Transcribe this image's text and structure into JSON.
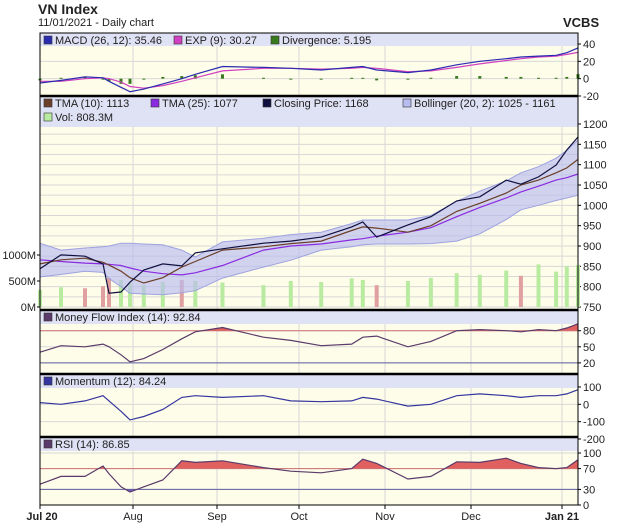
{
  "header": {
    "title": "VN Index",
    "subtitle": "11/01/2021 - Daily chart",
    "brand": "VCBS"
  },
  "colors": {
    "plot_bg": "#fefde9",
    "legend_bg": "#dfe1f4",
    "grid": "#d8d8d8",
    "macd": "#2b2bb0",
    "exp": "#d040c0",
    "divergence": "#3a7a1e",
    "tma10": "#6b3f2a",
    "tma25": "#8a2be2",
    "close": "#101040",
    "bollinger": "#b9bcef",
    "vol_up": "#b8eaa0",
    "vol_down": "#e0a0a0",
    "mfi": "#5a3a6a",
    "momentum": "#3535a0",
    "rsi": "#5a3a6a",
    "overbought_fill": "#e06060",
    "oversold_fill": "#7060c0",
    "upper_line": "#d07070",
    "lower_line": "#6060a0"
  },
  "chart_data": {
    "type": "line",
    "x_ticks": [
      "Jul 20",
      "Aug",
      "Sep",
      "Oct",
      "Nov",
      "Dec",
      "Jan 21"
    ],
    "dates": [
      "2020-07-01",
      "2020-07-08",
      "2020-07-16",
      "2020-07-22",
      "2020-07-24",
      "2020-07-28",
      "2020-07-31",
      "2020-08-05",
      "2020-08-12",
      "2020-08-19",
      "2020-08-24",
      "2020-09-03",
      "2020-09-18",
      "2020-09-28",
      "2020-10-09",
      "2020-10-20",
      "2020-10-24",
      "2020-10-29",
      "2020-11-09",
      "2020-11-17",
      "2020-11-26",
      "2020-12-04",
      "2020-12-13",
      "2020-12-18",
      "2020-12-24",
      "2020-12-30",
      "2021-01-04",
      "2021-01-11"
    ],
    "macd_panel": {
      "legend": [
        {
          "label": "MACD (26, 12): 35.46",
          "key": "macd"
        },
        {
          "label": "EXP (9): 30.27",
          "key": "exp"
        },
        {
          "label": "Divergence: 5.195",
          "key": "divergence"
        }
      ],
      "ylim": [
        -20,
        40
      ],
      "y_ticks": [
        "40",
        "20",
        "0",
        "-20"
      ],
      "y_tick_values": [
        40,
        20,
        0,
        -20
      ],
      "macd": [
        -5,
        -2,
        2,
        1,
        -3,
        -10,
        -15,
        -12,
        -6,
        0,
        5,
        14,
        13,
        12,
        10,
        13,
        14,
        10,
        7,
        10,
        16,
        20,
        23,
        25,
        26,
        27,
        30,
        35.46
      ],
      "exp": [
        -3,
        -3,
        0,
        1,
        0,
        -4,
        -9,
        -11,
        -8,
        -3,
        1,
        9,
        12,
        12,
        11,
        12,
        13,
        12,
        8,
        9,
        13,
        17,
        21,
        23,
        25,
        26,
        28,
        30.27
      ],
      "divergence": [
        -2,
        1,
        2,
        0,
        -3,
        -6,
        -6,
        -1,
        2,
        3,
        4,
        5,
        1,
        0,
        -1,
        1,
        1,
        -2,
        -1,
        1,
        3,
        3,
        2,
        2,
        1,
        1,
        2,
        5.195
      ]
    },
    "price_panel": {
      "legend": [
        {
          "label": "TMA (10): 1113",
          "key": "tma10"
        },
        {
          "label": "TMA (25): 1077",
          "key": "tma25"
        },
        {
          "label": "Closing Price: 1168",
          "key": "close"
        },
        {
          "label": "Bollinger (20, 2): 1025 - 1161",
          "key": "bollinger"
        },
        {
          "label": "Vol: 808.3M",
          "key": "vol_up"
        }
      ],
      "ylim": [
        750,
        1200
      ],
      "y_ticks": [
        "1200",
        "1150",
        "1100",
        "1050",
        "1000",
        "950",
        "900",
        "850",
        "800",
        "750"
      ],
      "y_tick_values": [
        1200,
        1150,
        1100,
        1050,
        1000,
        950,
        900,
        850,
        800,
        750
      ],
      "vol_ylim_millions": [
        0,
        1000
      ],
      "vol_ticks": [
        "1000M",
        "500M",
        "0M"
      ],
      "vol_tick_values": [
        1000,
        500,
        0
      ],
      "close": [
        844,
        878,
        875,
        856,
        784,
        787,
        811,
        841,
        856,
        851,
        883,
        893,
        907,
        912,
        922,
        947,
        959,
        922,
        952,
        972,
        1011,
        1021,
        1062,
        1052,
        1070,
        1099,
        1136,
        1168
      ],
      "tma10": [
        856,
        866,
        870,
        860,
        853,
        838,
        822,
        809,
        822,
        848,
        862,
        890,
        898,
        906,
        912,
        938,
        947,
        944,
        934,
        950,
        985,
        1005,
        1030,
        1050,
        1062,
        1080,
        1092,
        1113
      ],
      "tma25": [
        866,
        862,
        858,
        856,
        855,
        852,
        846,
        838,
        832,
        829,
        834,
        852,
        890,
        900,
        905,
        915,
        918,
        924,
        934,
        945,
        972,
        995,
        1018,
        1033,
        1047,
        1062,
        1068,
        1077
      ],
      "bollinger_upper": [
        907,
        890,
        895,
        898,
        900,
        907,
        907,
        905,
        903,
        890,
        873,
        910,
        919,
        928,
        934,
        955,
        964,
        964,
        964,
        975,
        1010,
        1035,
        1060,
        1080,
        1095,
        1116,
        1135,
        1161
      ],
      "bollinger_lower": [
        824,
        830,
        838,
        835,
        820,
        800,
        784,
        782,
        780,
        785,
        790,
        821,
        848,
        865,
        890,
        898,
        903,
        905,
        905,
        906,
        912,
        930,
        965,
        989,
        1000,
        1012,
        1018,
        1025
      ],
      "volume_millions": [
        330,
        380,
        360,
        400,
        560,
        520,
        450,
        420,
        480,
        520,
        500,
        470,
        420,
        500,
        480,
        550,
        520,
        420,
        500,
        560,
        650,
        620,
        700,
        600,
        820,
        680,
        780,
        808.3
      ]
    },
    "mfi_panel": {
      "legend": [
        {
          "label": "Money Flow Index (14): 92.84",
          "key": "mfi"
        }
      ],
      "ylim": [
        0,
        100
      ],
      "y_ticks": [
        "80",
        "50",
        "20"
      ],
      "y_tick_values": [
        80,
        50,
        20
      ],
      "upper": 80,
      "lower": 20,
      "values": [
        40,
        52,
        50,
        55,
        50,
        35,
        22,
        28,
        45,
        65,
        78,
        86,
        68,
        62,
        52,
        55,
        68,
        70,
        50,
        60,
        80,
        82,
        80,
        78,
        82,
        80,
        85,
        92.84
      ]
    },
    "momentum_panel": {
      "legend": [
        {
          "label": "Momentum (12): 84.24",
          "key": "momentum"
        }
      ],
      "ylim": [
        -200,
        100
      ],
      "y_ticks": [
        "100",
        "0",
        "-100",
        "-200"
      ],
      "y_tick_values": [
        100,
        0,
        -100,
        -200
      ],
      "values": [
        10,
        0,
        20,
        50,
        20,
        -40,
        -90,
        -70,
        -30,
        40,
        50,
        40,
        50,
        20,
        15,
        20,
        40,
        30,
        -10,
        0,
        50,
        60,
        50,
        40,
        50,
        50,
        60,
        84.24
      ]
    },
    "rsi_panel": {
      "legend": [
        {
          "label": "RSI (14): 86.85",
          "key": "rsi"
        }
      ],
      "ylim": [
        0,
        100
      ],
      "y_ticks": [
        "100",
        "70",
        "30",
        "0"
      ],
      "y_tick_values": [
        100,
        70,
        30,
        0
      ],
      "upper": 70,
      "lower": 30,
      "values": [
        40,
        55,
        55,
        75,
        60,
        35,
        25,
        35,
        48,
        85,
        82,
        85,
        72,
        65,
        62,
        70,
        88,
        80,
        50,
        55,
        83,
        82,
        90,
        80,
        72,
        70,
        72,
        86.85
      ]
    }
  }
}
